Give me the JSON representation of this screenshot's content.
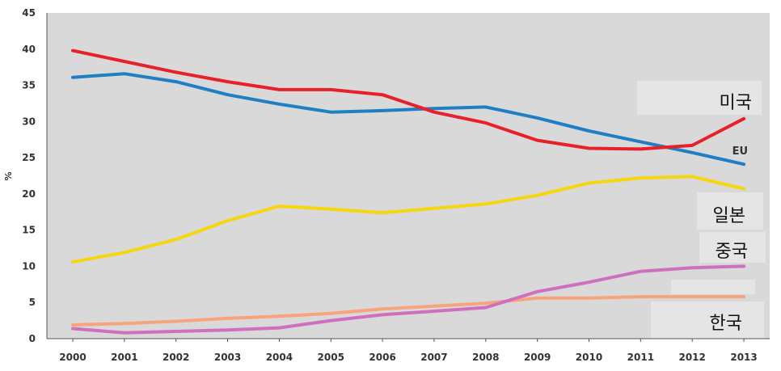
{
  "chart_data": {
    "type": "line",
    "ylabel": "%",
    "ylim": [
      0,
      45
    ],
    "yticks": [
      0,
      5,
      10,
      15,
      20,
      25,
      30,
      35,
      40,
      45
    ],
    "x": [
      "2000",
      "2001",
      "2002",
      "2003",
      "2004",
      "2005",
      "2006",
      "2007",
      "2008",
      "2009",
      "2010",
      "2011",
      "2012",
      "2013"
    ],
    "grid": false,
    "background": "#d9d9d9",
    "series": [
      {
        "name": "미국",
        "color": "#e8202a",
        "values": [
          39.8,
          38.3,
          36.8,
          35.5,
          34.4,
          34.4,
          33.7,
          31.3,
          29.8,
          27.4,
          26.3,
          26.2,
          26.7,
          30.4
        ]
      },
      {
        "name": "EU",
        "color": "#1f7ec4",
        "values": [
          36.1,
          36.6,
          35.5,
          33.7,
          32.4,
          31.3,
          31.5,
          31.8,
          32.0,
          30.5,
          28.7,
          27.2,
          25.7,
          24.1
        ]
      },
      {
        "name": "일본",
        "color": "#f5d60f",
        "values": [
          10.6,
          11.9,
          13.7,
          16.3,
          18.3,
          17.9,
          17.4,
          18.0,
          18.6,
          19.8,
          21.5,
          22.2,
          22.4,
          20.7
        ]
      },
      {
        "name": "중국",
        "color": "#cf6fbe",
        "values": [
          1.4,
          0.8,
          1.0,
          1.2,
          1.5,
          2.5,
          3.3,
          3.8,
          4.3,
          6.5,
          7.8,
          9.3,
          9.8,
          10.0
        ]
      },
      {
        "name": "한국",
        "color": "#f7a47c",
        "values": [
          1.9,
          2.1,
          2.4,
          2.8,
          3.1,
          3.5,
          4.1,
          4.5,
          4.9,
          5.6,
          5.6,
          5.8,
          5.8,
          5.8
        ]
      }
    ]
  }
}
